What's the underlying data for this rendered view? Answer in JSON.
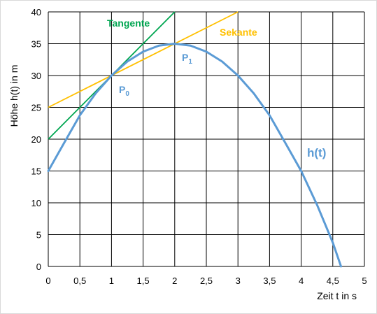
{
  "chart_data": {
    "type": "line",
    "xlabel": "Zeit t in s",
    "ylabel": "Höhe h(t) in m",
    "xlim": [
      0,
      5
    ],
    "ylim": [
      0,
      40
    ],
    "x_ticks": [
      "0",
      "0,5",
      "1",
      "1,5",
      "2",
      "2,5",
      "3",
      "3,5",
      "4",
      "4,5",
      "5"
    ],
    "y_ticks": [
      "0",
      "5",
      "10",
      "15",
      "20",
      "25",
      "30",
      "35",
      "40"
    ],
    "grid": true,
    "colors": {
      "curve": "#5B9BD5",
      "tangent": "#00A651",
      "secant": "#FFC000"
    },
    "series": [
      {
        "name": "h(t)",
        "x": [
          0,
          0.25,
          0.5,
          0.75,
          1,
          1.25,
          1.5,
          1.75,
          2,
          2.25,
          2.5,
          2.75,
          3,
          3.25,
          3.5,
          3.75,
          4,
          4.25,
          4.5,
          4.63
        ],
        "y": [
          15,
          19.4,
          23.75,
          27.2,
          30,
          32.2,
          33.75,
          34.7,
          35,
          34.7,
          33.75,
          32.2,
          30,
          27.2,
          23.75,
          19.4,
          15,
          9.7,
          3.75,
          0
        ]
      },
      {
        "name": "Tangente",
        "x": [
          0,
          2
        ],
        "y": [
          20,
          40
        ]
      },
      {
        "name": "Sekante",
        "x": [
          0,
          3
        ],
        "y": [
          25,
          40
        ]
      }
    ],
    "points": [
      {
        "name": "P0",
        "label_main": "P",
        "label_sub": "0",
        "x": 1,
        "y": 30
      },
      {
        "name": "P1",
        "label_main": "P",
        "label_sub": "1",
        "x": 2,
        "y": 35
      }
    ]
  }
}
